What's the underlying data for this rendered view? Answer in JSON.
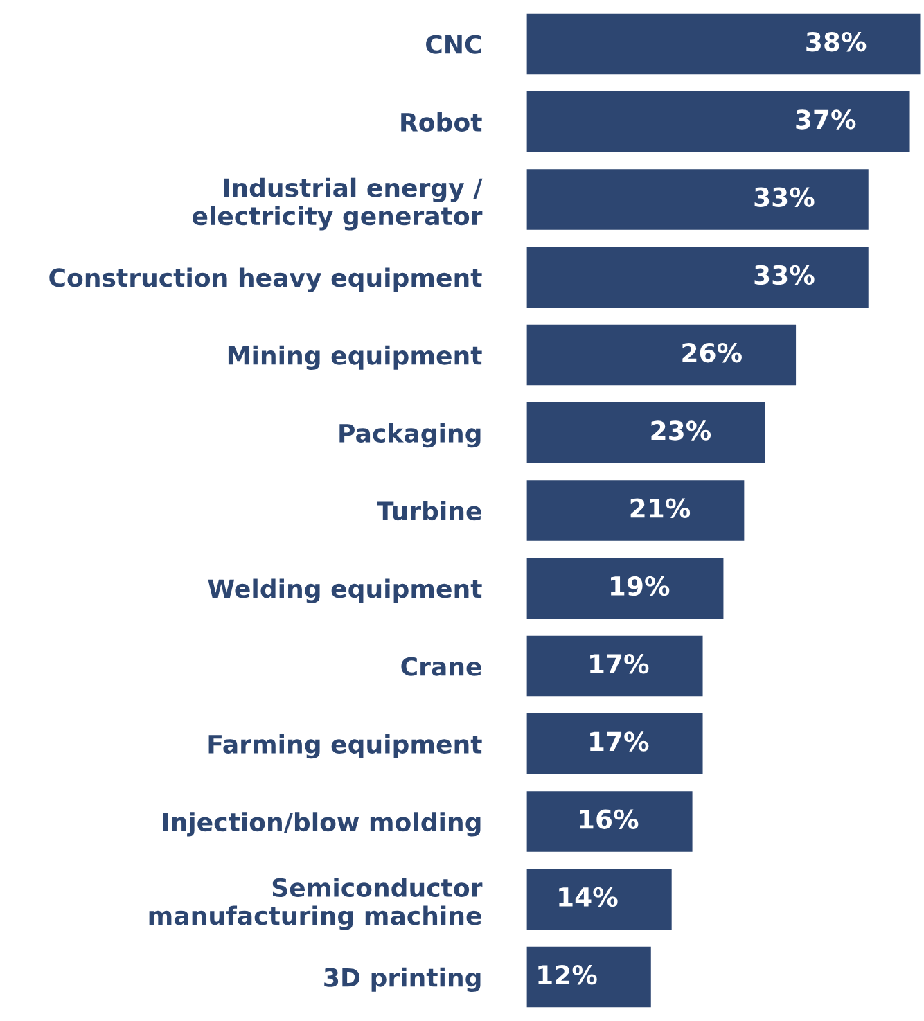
{
  "chart_data": {
    "type": "bar",
    "orientation": "horizontal",
    "color": "#2d4671",
    "categories": [
      "CNC",
      "Robot",
      "Industrial energy /\nelectricity generator",
      "Construction heavy equipment",
      "Mining equipment",
      "Packaging",
      "Turbine",
      "Welding equipment",
      "Crane",
      "Farming equipment",
      "Injection/blow molding",
      "Semiconductor\nmanufacturing machine",
      "3D printing"
    ],
    "values": [
      38,
      37,
      33,
      33,
      26,
      23,
      21,
      19,
      17,
      17,
      16,
      14,
      12
    ],
    "value_labels": [
      "38%",
      "37%",
      "33%",
      "33%",
      "26%",
      "23%",
      "21%",
      "19%",
      "17%",
      "17%",
      "16%",
      "14%",
      "12%"
    ],
    "grid": false,
    "legend": false
  }
}
